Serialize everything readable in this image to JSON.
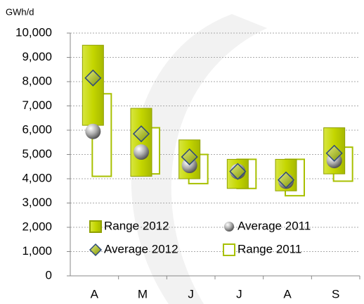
{
  "chart_data": {
    "type": "range_bar",
    "y_label": "GWh/d",
    "categories": [
      "A",
      "M",
      "J",
      "J",
      "A",
      "S"
    ],
    "ylim": [
      0,
      10000
    ],
    "yticks": [
      0,
      {
        "value": 1000,
        "label": "1,000"
      },
      {
        "value": 2000,
        "label": "2,000"
      },
      {
        "value": 3000,
        "label": "3,000"
      },
      {
        "value": 4000,
        "label": "4,000"
      },
      {
        "value": 5000,
        "label": "5,000"
      },
      {
        "value": 6000,
        "label": "6,000"
      },
      {
        "value": 7000,
        "label": "7,000"
      },
      {
        "value": 8000,
        "label": "8,000"
      },
      {
        "value": 9000,
        "label": "9,000"
      },
      {
        "value": 10000,
        "label": "10,000"
      }
    ],
    "grid": true,
    "legend": "center",
    "series": [
      {
        "name": "Range 2012",
        "kind": "range",
        "color": "#b8cc00",
        "low": [
          6200,
          4100,
          4000,
          3600,
          3500,
          4200
        ],
        "high": [
          9500,
          6900,
          5600,
          4800,
          4800,
          6100
        ]
      },
      {
        "name": "Average 2011",
        "kind": "marker",
        "marker": "sphere",
        "color": "#9a9a9a",
        "values": [
          5950,
          5100,
          4550,
          4300,
          3900,
          4750
        ]
      },
      {
        "name": "Average 2012",
        "kind": "marker",
        "marker": "diamond",
        "color": "#a8bf2a",
        "values": [
          8150,
          5850,
          4900,
          4300,
          3950,
          5050
        ]
      },
      {
        "name": "Range 2011",
        "kind": "range",
        "color": "#ffffff",
        "low": [
          4100,
          4200,
          3800,
          3600,
          3300,
          3900
        ],
        "high": [
          7500,
          6100,
          5000,
          4800,
          4800,
          5300
        ]
      }
    ]
  }
}
